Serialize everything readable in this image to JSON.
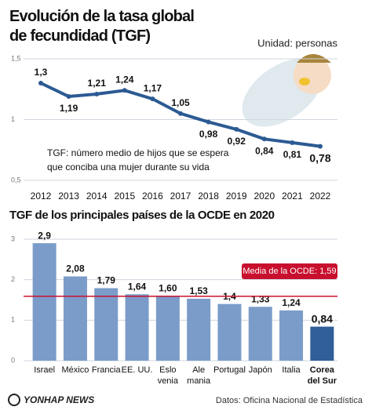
{
  "chart_data": [
    {
      "type": "line",
      "title": "Evolución de la tasa global\nde fecundidad (TGF)",
      "unit": "Unidad: personas",
      "annotation": "TGF: número medio de hijos que se espera\nque conciba una mujer durante su vida",
      "x": [
        "2012",
        "2013",
        "2014",
        "2015",
        "2016",
        "2017",
        "2018",
        "2019",
        "2020",
        "2021",
        "2022"
      ],
      "values": [
        1.3,
        1.19,
        1.21,
        1.24,
        1.17,
        1.05,
        0.98,
        0.92,
        0.84,
        0.81,
        0.78
      ],
      "value_labels": [
        "1,3",
        "1,19",
        "1,21",
        "1,24",
        "1,17",
        "1,05",
        "0,98",
        "0,92",
        "0,84",
        "0,81",
        "0,78"
      ],
      "color": "#2c5a93",
      "ylim": [
        0.5,
        1.5
      ],
      "yticks": [
        {
          "value": 0.5,
          "label": "0,5"
        },
        1,
        {
          "value": 1.5,
          "label": "1,5"
        }
      ],
      "grid": true
    },
    {
      "type": "bar",
      "title": "TGF de los principales países de la OCDE en 2020",
      "categories": [
        "Israel",
        "México",
        "Francia",
        "EE. UU.",
        "Eslo\nvenia",
        "Ale\nmania",
        "Portugal",
        "Japón",
        "Italia",
        "Corea\ndel Sur"
      ],
      "values": [
        2.9,
        2.08,
        1.79,
        1.64,
        1.6,
        1.53,
        1.4,
        1.33,
        1.24,
        0.84
      ],
      "value_labels": [
        "2,9",
        "2,08",
        "1,79",
        "1,64",
        "1,60",
        "1,53",
        "1,4",
        "1,33",
        "1,24",
        "0,84"
      ],
      "color": "#7b9cc9",
      "highlight_color": "#2f5e98",
      "reference_line": {
        "value": 1.59,
        "label": "Media de la OCDE: 1,59",
        "color": "#c8102e"
      },
      "ylim": [
        0,
        3
      ],
      "yticks": [
        0,
        1,
        2,
        3
      ],
      "grid": true
    }
  ],
  "footer": {
    "logo": "YONHAP NEWS",
    "source": "Datos: Oficina Nacional de Estadística"
  }
}
